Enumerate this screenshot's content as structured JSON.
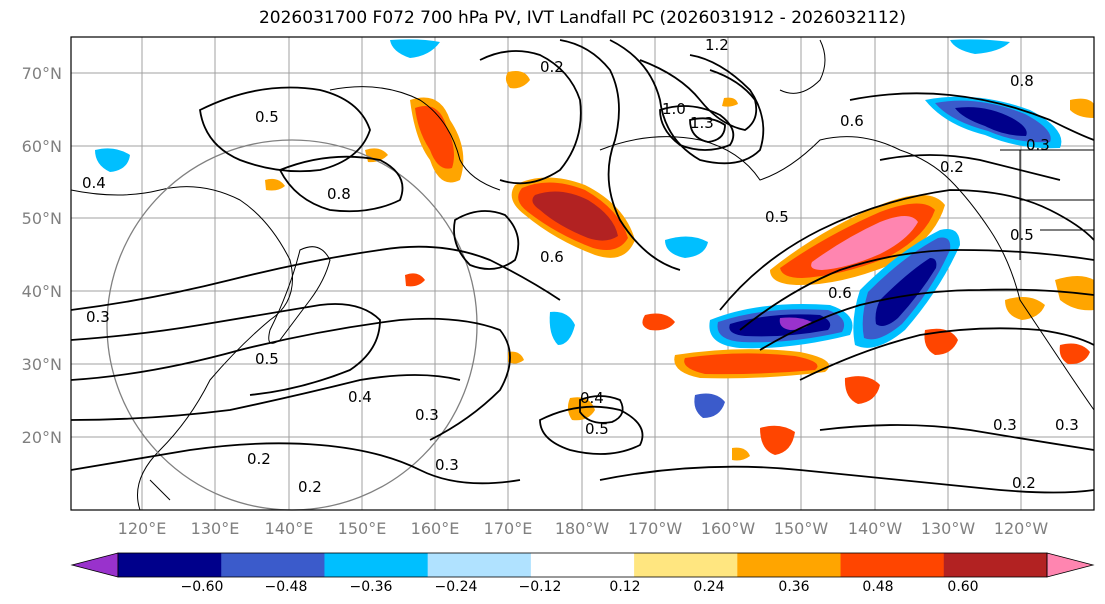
{
  "title": "2026031700 F072 700 hPa PV, IVT Landfall PC (2026031912 - 2026032112)",
  "map": {
    "lat_labels": [
      "70°N",
      "60°N",
      "50°N",
      "40°N",
      "30°N",
      "20°N"
    ],
    "lon_labels": [
      "120°E",
      "130°E",
      "140°E",
      "150°E",
      "160°E",
      "170°E",
      "180°W",
      "170°W",
      "160°W",
      "150°W",
      "140°W",
      "130°W",
      "120°W"
    ],
    "contour_labels": [
      "0.5",
      "0.4",
      "0.3",
      "0.8",
      "0.6",
      "0.5",
      "0.2",
      "1.2",
      "1.0",
      "1.3",
      "0.6",
      "0.5",
      "0.2",
      "0.6",
      "0.4",
      "0.3",
      "0.5",
      "0.4",
      "0.3",
      "0.2",
      "0.2",
      "0.3",
      "0.3",
      "0.2",
      "0.5",
      "0.8",
      "0.3"
    ],
    "fill_colors": {
      "neg_strong": "#9932cc",
      "neg_4": "#00008b",
      "neg_3": "#3b5bcb",
      "neg_2": "#00bfff",
      "neg_1": "#b0e2ff",
      "pos_1": "#ffe680",
      "pos_2": "#ffa500",
      "pos_3": "#ff4500",
      "pos_4": "#b22222",
      "pos_strong": "#ff85b0"
    }
  },
  "colorbar": {
    "ticks": [
      "−0.60",
      "−0.48",
      "−0.36",
      "−0.24",
      "−0.12",
      "0.12",
      "0.24",
      "0.36",
      "0.48",
      "0.60"
    ],
    "colors": [
      "#9932cc",
      "#00008b",
      "#3b5bcb",
      "#00bfff",
      "#b0e2ff",
      "#ffffff",
      "#ffe680",
      "#ffa500",
      "#ff4500",
      "#b22222",
      "#ff85b0"
    ]
  }
}
